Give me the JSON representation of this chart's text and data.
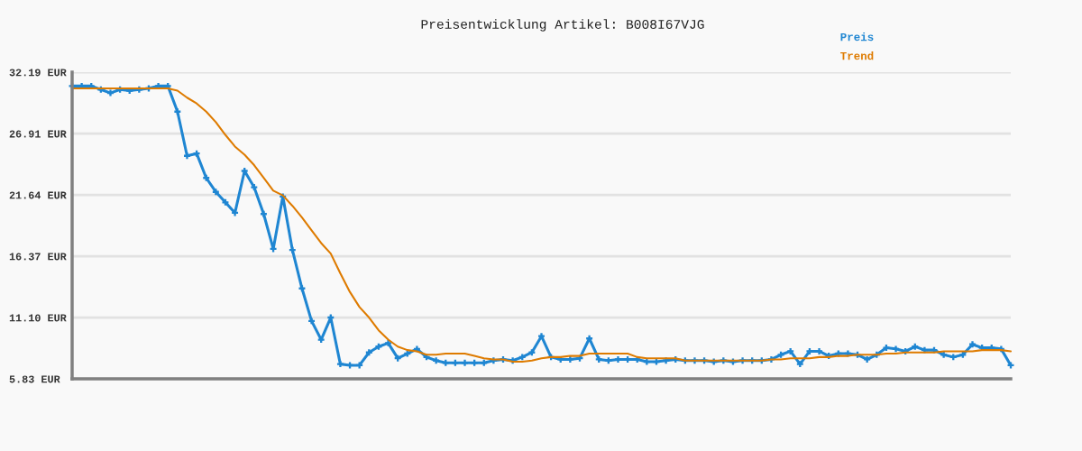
{
  "chart_data": {
    "type": "line",
    "title": "Preisentwicklung Artikel: B008I67VJG",
    "categories": [
      null,
      null,
      null,
      null,
      null,
      null,
      null,
      null,
      null,
      null,
      null,
      null,
      null,
      null,
      null,
      null,
      null,
      null,
      null,
      null,
      null,
      null,
      null,
      null,
      null,
      null,
      null,
      null,
      null,
      null,
      null,
      null,
      null,
      null,
      null,
      null,
      null,
      null,
      null,
      null,
      null,
      null,
      null,
      null,
      null,
      null,
      null,
      null,
      null,
      null,
      null,
      null,
      null,
      null,
      null,
      null,
      null,
      null,
      null,
      null,
      null,
      null,
      null,
      null,
      null,
      null,
      null,
      null,
      null,
      null,
      null,
      null,
      null,
      null,
      null,
      null,
      null,
      null,
      null,
      null,
      null,
      null,
      null,
      null,
      null,
      null,
      null,
      null,
      null,
      null,
      null,
      null,
      null,
      null,
      null,
      null,
      null,
      null,
      null
    ],
    "series": [
      {
        "name": "Preis",
        "color": "#1f86d2",
        "marker": "cross",
        "values": [
          31.0,
          31.0,
          31.0,
          30.7,
          30.4,
          30.7,
          30.6,
          30.7,
          30.8,
          31.0,
          31.0,
          28.8,
          25.0,
          25.2,
          23.1,
          21.9,
          21.0,
          20.1,
          23.7,
          22.3,
          20.0,
          17.0,
          21.5,
          16.9,
          13.6,
          10.8,
          9.2,
          11.1,
          7.1,
          7.0,
          7.0,
          8.1,
          8.6,
          8.9,
          7.6,
          8.0,
          8.4,
          7.7,
          7.4,
          7.2,
          7.2,
          7.2,
          7.2,
          7.2,
          7.4,
          7.5,
          7.4,
          7.7,
          8.1,
          9.5,
          7.7,
          7.5,
          7.5,
          7.6,
          9.3,
          7.5,
          7.4,
          7.5,
          7.5,
          7.5,
          7.3,
          7.3,
          7.4,
          7.5,
          7.4,
          7.4,
          7.4,
          7.3,
          7.4,
          7.3,
          7.4,
          7.4,
          7.4,
          7.5,
          7.9,
          8.2,
          7.1,
          8.2,
          8.2,
          7.8,
          8.0,
          8.0,
          7.9,
          7.5,
          7.9,
          8.5,
          8.4,
          8.2,
          8.6,
          8.3,
          8.3,
          7.9,
          7.7,
          7.9,
          8.8,
          8.5,
          8.5,
          8.4,
          7.0
        ]
      },
      {
        "name": "Trend",
        "color": "#de7b00",
        "marker": "none",
        "values": [
          30.8,
          30.8,
          30.8,
          30.8,
          30.8,
          30.8,
          30.8,
          30.8,
          30.8,
          30.8,
          30.8,
          30.6,
          30.0,
          29.5,
          28.8,
          27.9,
          26.8,
          25.8,
          25.1,
          24.2,
          23.1,
          22.0,
          21.6,
          20.7,
          19.7,
          18.6,
          17.5,
          16.6,
          14.9,
          13.3,
          12.0,
          11.1,
          10.0,
          9.2,
          8.6,
          8.3,
          8.2,
          7.9,
          7.9,
          8.0,
          8.0,
          8.0,
          7.8,
          7.6,
          7.5,
          7.5,
          7.3,
          7.3,
          7.4,
          7.6,
          7.7,
          7.7,
          7.8,
          7.8,
          8.0,
          8.0,
          8.0,
          8.0,
          8.0,
          7.7,
          7.6,
          7.6,
          7.6,
          7.6,
          7.4,
          7.4,
          7.4,
          7.4,
          7.4,
          7.4,
          7.4,
          7.4,
          7.4,
          7.5,
          7.5,
          7.6,
          7.6,
          7.6,
          7.7,
          7.7,
          7.8,
          7.8,
          7.9,
          7.9,
          7.9,
          8.0,
          8.0,
          8.1,
          8.1,
          8.1,
          8.1,
          8.2,
          8.2,
          8.2,
          8.2,
          8.3,
          8.3,
          8.3,
          8.2
        ]
      }
    ],
    "ylim": [
      5.83,
      32.19
    ],
    "yticks": [
      {
        "value": 5.83,
        "label": "5.83 EUR"
      },
      {
        "value": 11.1,
        "label": "11.10 EUR"
      },
      {
        "value": 16.37,
        "label": "16.37 EUR"
      },
      {
        "value": 21.64,
        "label": "21.64 EUR"
      },
      {
        "value": 26.91,
        "label": "26.91 EUR"
      },
      {
        "value": 32.19,
        "label": "32.19 EUR"
      }
    ],
    "grid": "y",
    "legend": "top right",
    "tick_labels": "y"
  }
}
